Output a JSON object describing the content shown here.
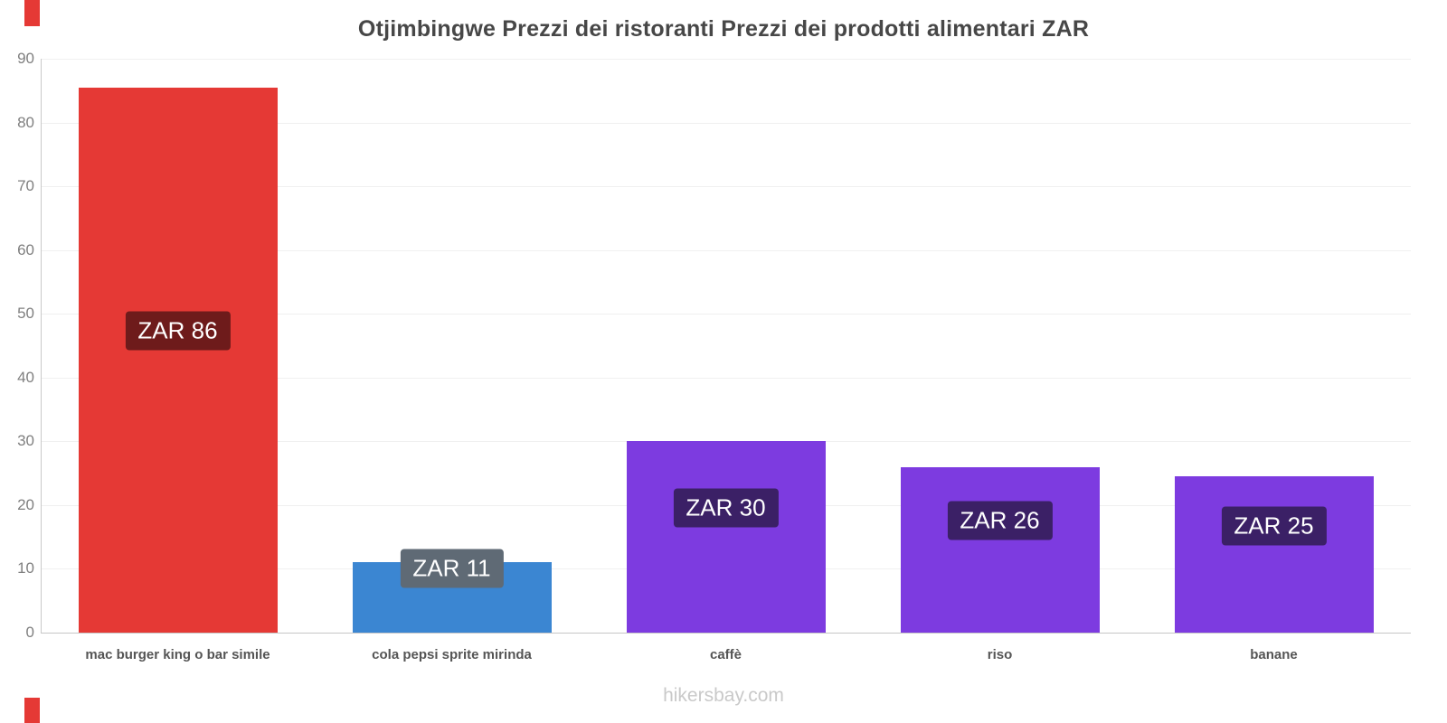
{
  "title": "Otjimbingwe Prezzi dei ristoranti Prezzi dei prodotti alimentari ZAR",
  "footer": "hikersbay.com",
  "accent_color": "#e53935",
  "chart_data": {
    "type": "bar",
    "title": "Otjimbingwe Prezzi dei ristoranti Prezzi dei prodotti alimentari ZAR",
    "categories": [
      "mac burger king o bar simile",
      "cola pepsi sprite mirinda",
      "caffè",
      "riso",
      "banane"
    ],
    "values": [
      85.5,
      11,
      30,
      26,
      24.5
    ],
    "value_labels": [
      "ZAR 86",
      "ZAR 11",
      "ZAR 30",
      "ZAR 26",
      "ZAR 25"
    ],
    "bar_colors": [
      "#e53935",
      "#3b86d2",
      "#7d3be0",
      "#7d3be0",
      "#7d3be0"
    ],
    "label_bg_colors": [
      "#6e1b1b",
      "#5f6a75",
      "#3b2066",
      "#3b2066",
      "#3b2066"
    ],
    "xlabel": "",
    "ylabel": "",
    "ylim": [
      0,
      90
    ],
    "ytick_step": 10,
    "grid": true,
    "legend": false
  }
}
